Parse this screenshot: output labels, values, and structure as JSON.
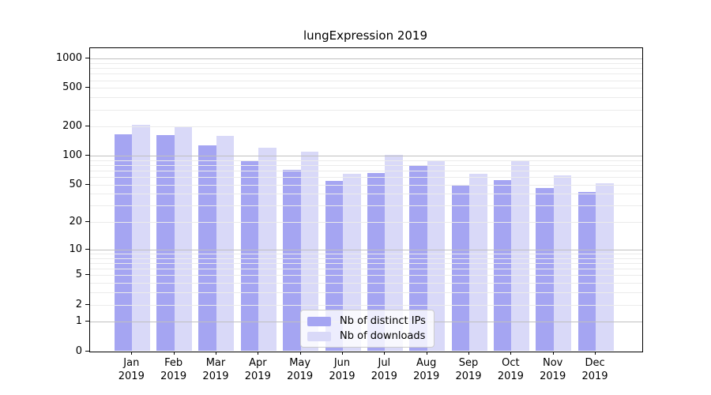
{
  "chart_data": {
    "type": "bar",
    "title": "lungExpression 2019",
    "months": [
      "Jan",
      "Feb",
      "Mar",
      "Apr",
      "May",
      "Jun",
      "Jul",
      "Aug",
      "Sep",
      "Oct",
      "Nov",
      "Dec"
    ],
    "year": "2019",
    "series": [
      {
        "name": "Nb of distinct IPs",
        "color": "#a5a5f2",
        "values": [
          166,
          164,
          129,
          90,
          72,
          55,
          66,
          79,
          50,
          56,
          46,
          42
        ]
      },
      {
        "name": "Nb of downloads",
        "color": "#d9d9f8",
        "values": [
          210,
          200,
          162,
          122,
          110,
          65,
          102,
          90,
          65,
          90,
          63,
          52
        ]
      }
    ],
    "yticks": [
      0,
      1,
      2,
      5,
      10,
      20,
      50,
      100,
      200,
      500,
      1000
    ],
    "scale": "log1p",
    "ylim": [
      0,
      1280
    ],
    "grid": true,
    "legend_position": "bottom-center",
    "colors": {
      "major_grid": "#c0c0c0",
      "minor_grid": "#ebebeb",
      "axis": "#000000",
      "background": "#ffffff"
    }
  }
}
